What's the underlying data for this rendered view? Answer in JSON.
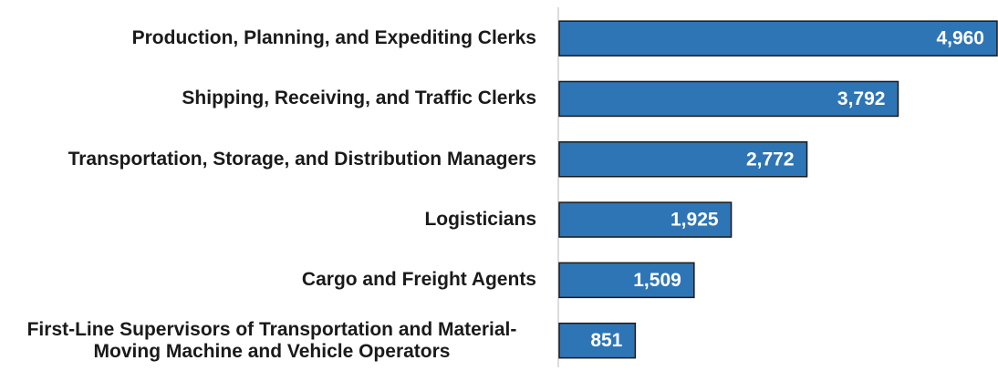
{
  "chart_data": {
    "type": "barh",
    "categories": [
      "Production, Planning, and Expediting Clerks",
      "Shipping, Receiving, and Traffic Clerks",
      "Transportation, Storage, and Distribution Managers",
      "Logisticians",
      "Cargo and Freight Agents",
      "First-Line Supervisors of Transportation and Material-Moving Machine and Vehicle Operators"
    ],
    "values": [
      4960,
      3792,
      2772,
      1925,
      1509,
      851
    ],
    "value_labels": [
      "4,960",
      "3,792",
      "2,772",
      "1,925",
      "1,509",
      "851"
    ],
    "color": "#2e75b6",
    "xlim": [
      0,
      4900
    ]
  }
}
